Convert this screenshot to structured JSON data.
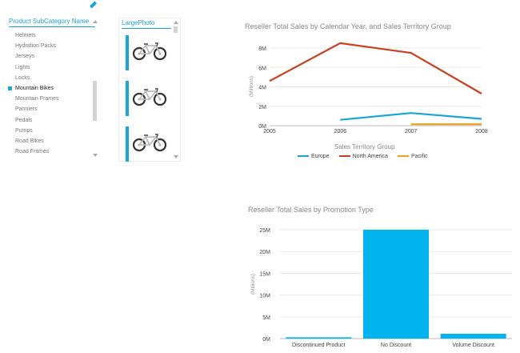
{
  "slicer": {
    "header": "Product SubCategory Name",
    "items": [
      {
        "label": "Helmets",
        "selected": false
      },
      {
        "label": "Hydration Packs",
        "selected": false
      },
      {
        "label": "Jerseys",
        "selected": false
      },
      {
        "label": "Lights",
        "selected": false
      },
      {
        "label": "Locks",
        "selected": false
      },
      {
        "label": "Mountain Bikes",
        "selected": true
      },
      {
        "label": "Mountain Frames",
        "selected": false
      },
      {
        "label": "Panniers",
        "selected": false
      },
      {
        "label": "Pedals",
        "selected": false
      },
      {
        "label": "Pumps",
        "selected": false
      },
      {
        "label": "Road Bikes",
        "selected": false
      },
      {
        "label": "Road Frames",
        "selected": false
      }
    ]
  },
  "photos": {
    "header": "LargePhoto",
    "count": 3
  },
  "colors": {
    "accent": "#1aa5d8",
    "europe": "#1aa5d8",
    "north_america": "#c8401d",
    "pacific": "#f0a11c",
    "bar": "#00b4ef"
  },
  "chart_data": [
    {
      "type": "line",
      "title": "Reseller Total Sales by Calendar Year, and Sales Territory Group",
      "x": [
        "2005",
        "2006",
        "2007",
        "2008"
      ],
      "ylabel": "(Millions)",
      "yticks": [
        "0M",
        "2M",
        "4M",
        "6M",
        "8M"
      ],
      "ylim": [
        0,
        9
      ],
      "xlim": [
        2005,
        2008
      ],
      "grid": true,
      "legend_title": "Sales Territory Group",
      "legend_position": "bottom",
      "series": [
        {
          "name": "Europe",
          "points": [
            [
              2006,
              0.6
            ],
            [
              2007,
              1.3
            ],
            [
              2008,
              0.7
            ]
          ],
          "color": "#1aa5d8"
        },
        {
          "name": "North America",
          "points": [
            [
              2005,
              4.6
            ],
            [
              2006,
              8.5
            ],
            [
              2007,
              7.5
            ],
            [
              2008,
              3.3
            ]
          ],
          "color": "#c8401d"
        },
        {
          "name": "Pacific",
          "points": [
            [
              2007,
              0.15
            ],
            [
              2008,
              0.15
            ]
          ],
          "color": "#f0a11c"
        }
      ]
    },
    {
      "type": "bar",
      "title": "Reseller Total Sales by Promotion Type",
      "categories": [
        "Discontinued Product",
        "No Discount",
        "Volume Discount"
      ],
      "values": [
        0.3,
        25.0,
        1.1
      ],
      "ylabel": "(Millions)",
      "yticks": [
        "0M",
        "5M",
        "10M",
        "15M",
        "20M",
        "25M"
      ],
      "ylim": [
        0,
        26
      ],
      "grid": true,
      "color": "#00b4ef"
    }
  ]
}
